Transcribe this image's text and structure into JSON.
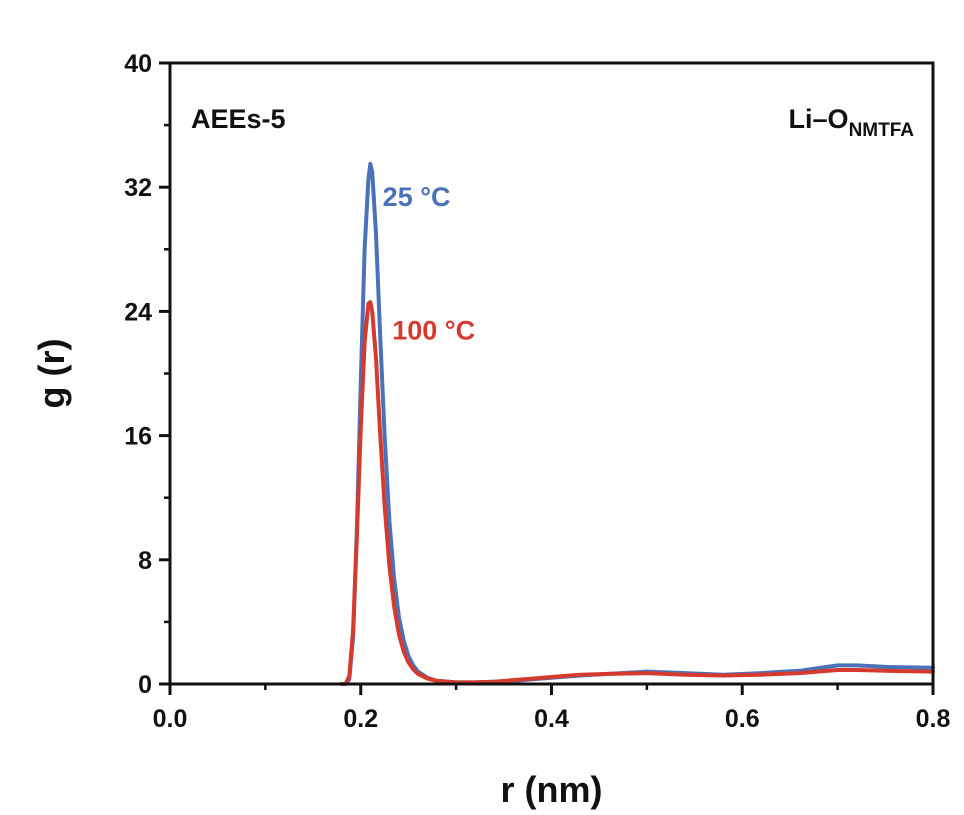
{
  "chart_data": {
    "type": "line",
    "title": "",
    "xlabel": "r (nm)",
    "ylabel": "g (r)",
    "xlim": [
      0.0,
      0.8
    ],
    "ylim": [
      0,
      40
    ],
    "xticks": [
      0.0,
      0.2,
      0.4,
      0.6,
      0.8
    ],
    "xtick_labels": [
      "0.0",
      "0.2",
      "0.4",
      "0.6",
      "0.8"
    ],
    "yticks": [
      0,
      8,
      16,
      24,
      32,
      40
    ],
    "ytick_labels": [
      "0",
      "8",
      "16",
      "24",
      "32",
      "40"
    ],
    "grid": false,
    "legend": "none",
    "annotations": {
      "system": "AEEs-5",
      "pair_main": "Li–O",
      "pair_sub": "NMTFA"
    },
    "series": [
      {
        "name": "25 °C",
        "color": "#4a72b8",
        "x": [
          0.18,
          0.184,
          0.188,
          0.192,
          0.196,
          0.2,
          0.204,
          0.208,
          0.21,
          0.212,
          0.216,
          0.22,
          0.225,
          0.23,
          0.235,
          0.24,
          0.245,
          0.25,
          0.255,
          0.26,
          0.27,
          0.28,
          0.3,
          0.32,
          0.34,
          0.36,
          0.38,
          0.4,
          0.43,
          0.46,
          0.5,
          0.54,
          0.58,
          0.62,
          0.66,
          0.7,
          0.72,
          0.75,
          0.8
        ],
        "y": [
          0,
          0.0,
          0.3,
          3.0,
          10.0,
          19.5,
          28.0,
          32.5,
          33.5,
          33.0,
          29.0,
          23.0,
          16.0,
          10.5,
          6.8,
          4.3,
          2.8,
          1.8,
          1.2,
          0.8,
          0.4,
          0.2,
          0.1,
          0.1,
          0.15,
          0.2,
          0.3,
          0.4,
          0.55,
          0.65,
          0.8,
          0.7,
          0.6,
          0.7,
          0.85,
          1.2,
          1.2,
          1.1,
          1.05
        ]
      },
      {
        "name": "100 °C",
        "color": "#d63a2f",
        "x": [
          0.18,
          0.184,
          0.188,
          0.192,
          0.196,
          0.2,
          0.204,
          0.208,
          0.21,
          0.212,
          0.216,
          0.22,
          0.225,
          0.23,
          0.235,
          0.24,
          0.245,
          0.25,
          0.255,
          0.26,
          0.27,
          0.28,
          0.3,
          0.32,
          0.34,
          0.36,
          0.38,
          0.4,
          0.43,
          0.46,
          0.5,
          0.54,
          0.58,
          0.62,
          0.66,
          0.7,
          0.72,
          0.75,
          0.8
        ],
        "y": [
          0,
          0.0,
          0.5,
          3.5,
          9.5,
          16.5,
          22.0,
          24.5,
          24.6,
          24.0,
          21.0,
          16.5,
          11.5,
          7.6,
          5.0,
          3.2,
          2.1,
          1.4,
          0.95,
          0.65,
          0.35,
          0.2,
          0.1,
          0.1,
          0.15,
          0.25,
          0.35,
          0.45,
          0.6,
          0.65,
          0.7,
          0.6,
          0.55,
          0.6,
          0.7,
          0.9,
          0.9,
          0.85,
          0.8
        ]
      }
    ]
  }
}
